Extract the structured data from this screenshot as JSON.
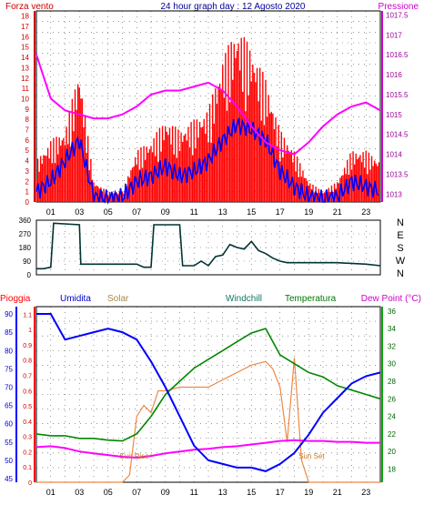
{
  "header": {
    "left_label": "Forza vento",
    "center_title": "24 hour graph day : 12 Agosto 2020",
    "right_label": "Pressione"
  },
  "colors": {
    "wind": "#ff0000",
    "gust_bg": "#ff0000",
    "wind_line": "#0000ff",
    "pressure": "#ff00ff",
    "direction": "#003333",
    "humidity": "#0000ff",
    "solar": "#ee8844",
    "temperature": "#008800",
    "dewpoint": "#ff00ff",
    "rain": "#ff0000",
    "grid": "#555555"
  },
  "chart_data": [
    {
      "type": "line",
      "name": "wind-pressure",
      "x_ticks": [
        "01",
        "03",
        "05",
        "07",
        "09",
        "11",
        "13",
        "15",
        "17",
        "19",
        "21",
        "23"
      ],
      "y_left_ticks": [
        "0",
        "1",
        "2",
        "3",
        "4",
        "5",
        "6",
        "7",
        "8",
        "9",
        "10",
        "11",
        "12",
        "13",
        "14",
        "15",
        "16",
        "17",
        "18"
      ],
      "y_right_ticks": [
        "1013",
        "1013.5",
        "1014",
        "1014.5",
        "1015",
        "1015.5",
        "1016",
        "1016.5",
        "1017",
        "1017.5"
      ],
      "ylim_left": [
        0,
        18.5
      ],
      "ylim_right": [
        1012.8,
        1017.6
      ],
      "xlim": [
        0,
        24
      ],
      "pressure": {
        "x": [
          0,
          1,
          2,
          3,
          4,
          5,
          6,
          7,
          8,
          9,
          10,
          11,
          12,
          13,
          14,
          15,
          16,
          17,
          18,
          19,
          20,
          21,
          22,
          23,
          24
        ],
        "y": [
          1016.5,
          1015.4,
          1015.1,
          1015.0,
          1014.9,
          1014.9,
          1015.0,
          1015.2,
          1015.5,
          1015.6,
          1015.6,
          1015.7,
          1015.8,
          1015.6,
          1015.2,
          1014.7,
          1014.3,
          1014.1,
          1014.0,
          1014.3,
          1014.7,
          1015.0,
          1015.2,
          1015.3,
          1015.1
        ]
      },
      "wind_avg": {
        "x": [
          0,
          1,
          2,
          3,
          4,
          5,
          6,
          7,
          8,
          9,
          10,
          11,
          12,
          13,
          14,
          15,
          16,
          17,
          18,
          19,
          20,
          21,
          22,
          23,
          24
        ],
        "y": [
          1,
          2,
          4,
          6,
          0.5,
          0.3,
          0.5,
          2,
          2.5,
          3.5,
          2.5,
          3,
          4,
          6,
          7.5,
          7,
          6,
          3,
          1.5,
          0.5,
          0.3,
          0.5,
          2,
          1.5,
          1
        ]
      },
      "wind_gust": {
        "x": [
          0,
          1,
          2,
          3,
          4,
          5,
          6,
          7,
          8,
          9,
          10,
          11,
          12,
          13,
          14,
          15,
          16,
          17,
          18,
          19,
          20,
          21,
          22,
          23,
          24
        ],
        "y": [
          4,
          6,
          7,
          13,
          2,
          1,
          1,
          5,
          6,
          8,
          7,
          8,
          9,
          14,
          17,
          15,
          12,
          7,
          5,
          2,
          1,
          2,
          5,
          5,
          4
        ]
      }
    },
    {
      "type": "line",
      "name": "wind-direction",
      "y_ticks": [
        "0",
        "90",
        "180",
        "270",
        "360"
      ],
      "y_right_labels": [
        "N",
        "W",
        "S",
        "E",
        "N"
      ],
      "ylim": [
        0,
        360
      ],
      "xlim": [
        0,
        24
      ],
      "direction": {
        "x": [
          0,
          0.5,
          1,
          1.2,
          3,
          3.1,
          7,
          7.5,
          8,
          8.2,
          10,
          10.2,
          11,
          11.5,
          12,
          12.5,
          13,
          13.5,
          14,
          14.5,
          15,
          15.5,
          16,
          16.5,
          17,
          17.5,
          18,
          21,
          23,
          24
        ],
        "y": [
          40,
          40,
          50,
          340,
          330,
          70,
          70,
          50,
          50,
          330,
          330,
          60,
          60,
          90,
          60,
          120,
          130,
          200,
          180,
          170,
          220,
          160,
          140,
          110,
          90,
          80,
          80,
          80,
          70,
          60
        ]
      }
    },
    {
      "type": "line",
      "name": "humidity-solar-temperature",
      "labels": [
        "Pioggia",
        "Umidita",
        "Solar",
        "Windchill",
        "Temperatura",
        "Dew Point (°C)"
      ],
      "x_ticks": [
        "01",
        "03",
        "05",
        "07",
        "09",
        "11",
        "13",
        "15",
        "17",
        "19",
        "21",
        "23"
      ],
      "y_rain_ticks": [
        "0",
        "0.1",
        "0.2",
        "0.3",
        "0.4",
        "0.5",
        "0.6",
        "0.7",
        "0.8",
        "0.9",
        "1",
        "1.1"
      ],
      "y_humidity_ticks": [
        "45",
        "50",
        "55",
        "60",
        "65",
        "70",
        "75",
        "80",
        "85",
        "90"
      ],
      "y_temp_ticks": [
        "18",
        "20",
        "22",
        "24",
        "26",
        "28",
        "30",
        "32",
        "34",
        "36"
      ],
      "ylim_humidity": [
        44,
        92
      ],
      "ylim_temp": [
        16.5,
        36.5
      ],
      "xlim": [
        0,
        24
      ],
      "annotations": [
        "Sun Rise",
        "Sun Set"
      ],
      "humidity": {
        "x": [
          0,
          1,
          2,
          3,
          4,
          5,
          6,
          7,
          8,
          9,
          10,
          11,
          12,
          13,
          14,
          15,
          16,
          17,
          18,
          19,
          20,
          21,
          22,
          23,
          24
        ],
        "y": [
          90,
          90,
          83,
          84,
          85,
          86,
          85,
          83,
          77,
          70,
          62,
          54,
          50,
          49,
          48,
          48,
          47,
          49,
          52,
          57,
          63,
          67,
          71,
          73,
          74
        ]
      },
      "temperature": {
        "x": [
          0,
          1,
          2,
          3,
          4,
          5,
          6,
          7,
          8,
          9,
          10,
          11,
          12,
          13,
          14,
          15,
          16,
          17,
          18,
          19,
          20,
          21,
          22,
          23,
          24
        ],
        "y": [
          22,
          21.8,
          21.8,
          21.5,
          21.5,
          21.3,
          21.2,
          22,
          24,
          26.5,
          28,
          29.5,
          30.5,
          31.5,
          32.5,
          33.5,
          34,
          31,
          30,
          29,
          28.5,
          27.5,
          27,
          26.5,
          26
        ]
      },
      "dewpoint": {
        "x": [
          0,
          1,
          2,
          3,
          4,
          5,
          6,
          7,
          8,
          9,
          10,
          11,
          12,
          13,
          14,
          15,
          16,
          17,
          18,
          19,
          20,
          21,
          22,
          23,
          24
        ],
        "y": [
          20.5,
          20.6,
          20.4,
          20,
          19.8,
          19.6,
          19.4,
          19.3,
          19.5,
          19.8,
          20,
          20.2,
          20.3,
          20.5,
          20.6,
          20.8,
          21,
          21.2,
          21.3,
          21.2,
          21.2,
          21.1,
          21.1,
          21,
          21
        ]
      },
      "solar": {
        "x": [
          0,
          5.5,
          6,
          6.5,
          7,
          7.5,
          8,
          8.5,
          9,
          10,
          11,
          12,
          13,
          14,
          15,
          16,
          16.5,
          17,
          17.5,
          18,
          18.5,
          19,
          19.5,
          20,
          24
        ],
        "y": [
          44,
          44,
          44,
          46,
          62,
          65,
          63,
          69,
          69,
          70,
          70,
          70,
          72,
          74,
          76,
          77,
          75,
          70,
          55,
          78,
          50,
          44,
          44,
          44,
          44
        ]
      }
    }
  ]
}
